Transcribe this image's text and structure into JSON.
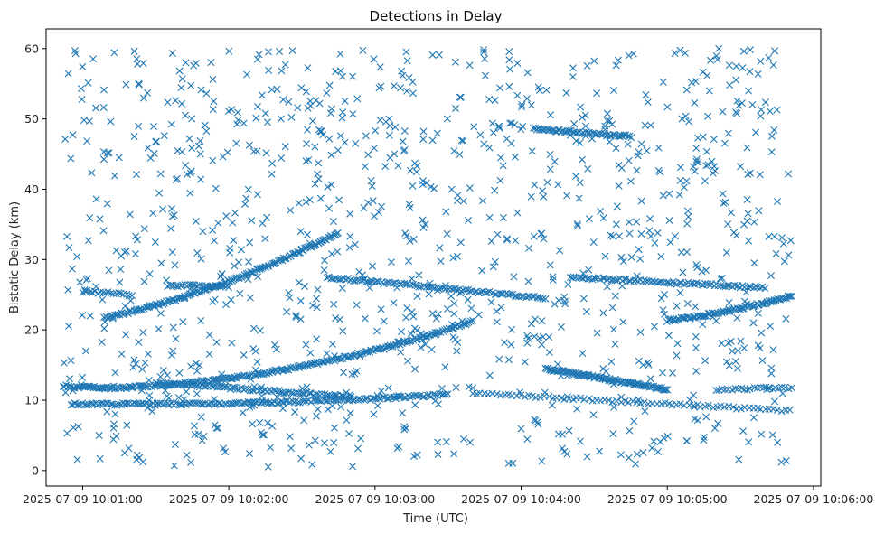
{
  "chart_data": {
    "type": "scatter",
    "title": "Detections in Delay",
    "xlabel": "Time (UTC)",
    "ylabel": "Bistatic Delay (km)",
    "x_ticks": [
      "2025-07-09 10:01:00",
      "2025-07-09 10:02:00",
      "2025-07-09 10:03:00",
      "2025-07-09 10:04:00",
      "2025-07-09 10:05:00",
      "2025-07-09 10:06:00"
    ],
    "y_ticks": [
      0,
      10,
      20,
      30,
      40,
      50,
      60
    ],
    "xlim": [
      "2025-07-09 10:00:45",
      "2025-07-09 10:06:03"
    ],
    "ylim": [
      -2.2,
      62.8
    ],
    "grid": false,
    "marker": "x",
    "series_color": "#1f77b4",
    "noise_time_range": [
      "2025-07-09 10:00:52",
      "2025-07-09 10:05:51"
    ],
    "noise_delay_range": [
      0.5,
      60
    ],
    "noise_count": 1100,
    "tracks": [
      {
        "t_start": "2025-07-09 10:01:09",
        "t_end": "2025-07-09 10:02:45",
        "delay_start": 21.7,
        "delay_end": 33.8,
        "curvature": 1.2,
        "points": 160
      },
      {
        "t_start": "2025-07-09 10:01:09",
        "t_end": "2025-07-09 10:03:40",
        "delay_start": 11.7,
        "delay_end": 21.2,
        "curvature": 2.0,
        "points": 230
      },
      {
        "t_start": "2025-07-09 10:00:52",
        "t_end": "2025-07-09 10:01:09",
        "delay_start": 12.0,
        "delay_end": 11.8,
        "curvature": 0,
        "points": 30
      },
      {
        "t_start": "2025-07-09 10:00:55",
        "t_end": "2025-07-09 10:03:30",
        "delay_start": 9.5,
        "delay_end": 10.8,
        "curvature": 0.5,
        "points": 180
      },
      {
        "t_start": "2025-07-09 10:01:30",
        "t_end": "2025-07-09 10:02:50",
        "delay_start": 12.5,
        "delay_end": 10.5,
        "curvature": 0,
        "points": 90
      },
      {
        "t_start": "2025-07-09 10:02:40",
        "t_end": "2025-07-09 10:04:10",
        "delay_start": 27.5,
        "delay_end": 24.5,
        "curvature": 0,
        "points": 100
      },
      {
        "t_start": "2025-07-09 10:03:40",
        "t_end": "2025-07-09 10:05:50",
        "delay_start": 11.0,
        "delay_end": 8.5,
        "curvature": 0,
        "points": 80
      },
      {
        "t_start": "2025-07-09 10:04:10",
        "t_end": "2025-07-09 10:05:00",
        "delay_start": 14.5,
        "delay_end": 11.5,
        "curvature": 0,
        "points": 110
      },
      {
        "t_start": "2025-07-09 10:04:20",
        "t_end": "2025-07-09 10:05:40",
        "delay_start": 27.5,
        "delay_end": 26.0,
        "curvature": 0,
        "points": 90
      },
      {
        "t_start": "2025-07-09 10:05:00",
        "t_end": "2025-07-09 10:05:51",
        "delay_start": 21.3,
        "delay_end": 24.8,
        "curvature": 0.3,
        "points": 90
      },
      {
        "t_start": "2025-07-09 10:04:05",
        "t_end": "2025-07-09 10:04:45",
        "delay_start": 48.6,
        "delay_end": 47.5,
        "curvature": 0,
        "points": 60
      },
      {
        "t_start": "2025-07-09 10:01:35",
        "t_end": "2025-07-09 10:02:00",
        "delay_start": 26.3,
        "delay_end": 26.2,
        "curvature": 0,
        "points": 30
      },
      {
        "t_start": "2025-07-09 10:01:00",
        "t_end": "2025-07-09 10:01:20",
        "delay_start": 25.5,
        "delay_end": 25.0,
        "curvature": 0,
        "points": 20
      },
      {
        "t_start": "2025-07-09 10:05:20",
        "t_end": "2025-07-09 10:05:51",
        "delay_start": 11.5,
        "delay_end": 11.8,
        "curvature": 0,
        "points": 25
      }
    ]
  }
}
